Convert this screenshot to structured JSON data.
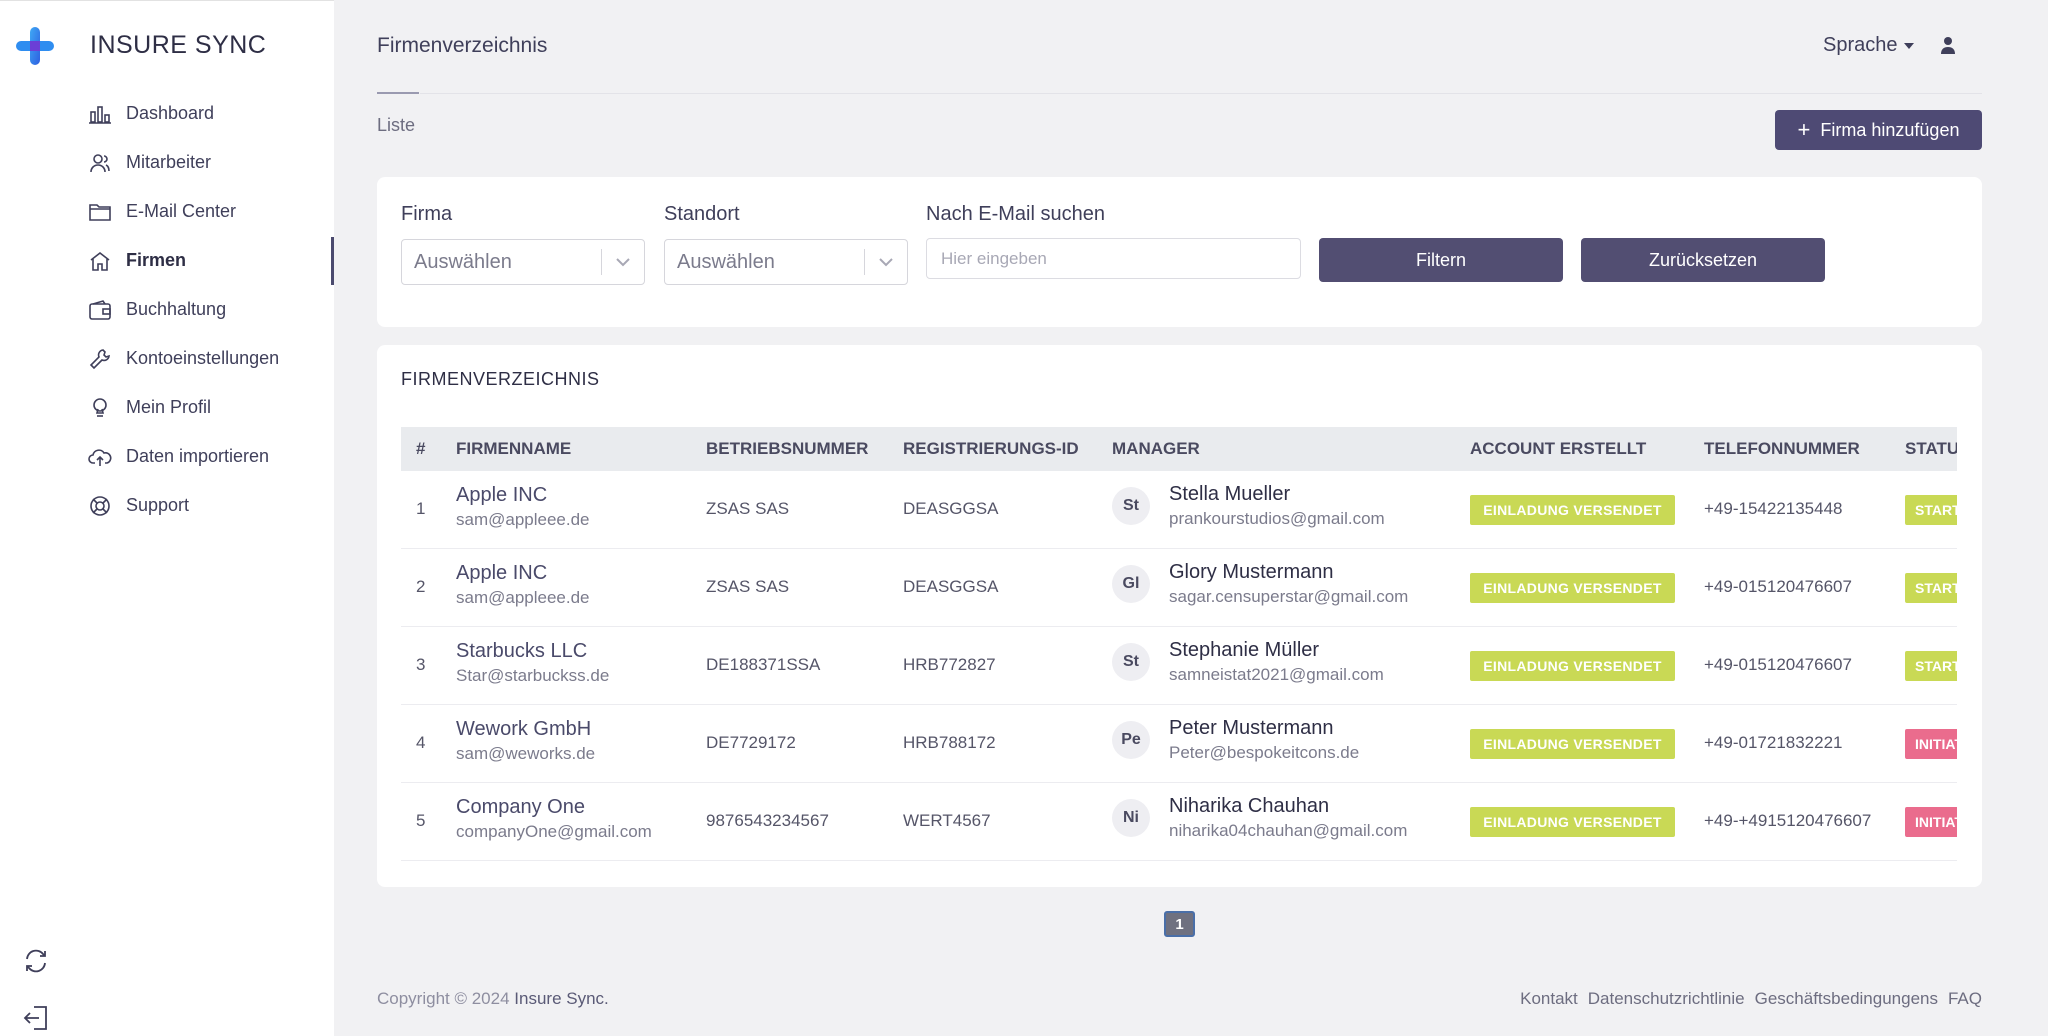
{
  "app": {
    "brand": "INSURE SYNC"
  },
  "sidebar": {
    "items": [
      {
        "label": "Dashboard",
        "icon": "bar-chart-icon"
      },
      {
        "label": "Mitarbeiter",
        "icon": "users-icon"
      },
      {
        "label": "E-Mail Center",
        "icon": "folder-icon"
      },
      {
        "label": "Firmen",
        "icon": "home-icon",
        "active": true
      },
      {
        "label": "Buchhaltung",
        "icon": "wallet-icon"
      },
      {
        "label": "Kontoeinstellungen",
        "icon": "wrench-icon"
      },
      {
        "label": "Mein Profil",
        "icon": "profile-icon"
      },
      {
        "label": "Daten importieren",
        "icon": "cloud-upload-icon"
      },
      {
        "label": "Support",
        "icon": "support-icon"
      }
    ]
  },
  "header": {
    "title": "Firmenverzeichnis",
    "language": "Sprache",
    "breadcrumb": "Liste",
    "add_button": "Firma hinzufügen"
  },
  "filters": {
    "firma_label": "Firma",
    "firma_value": "Auswählen",
    "standort_label": "Standort",
    "standort_value": "Auswählen",
    "email_label": "Nach E-Mail suchen",
    "email_placeholder": "Hier eingeben",
    "filter_button": "Filtern",
    "reset_button": "Zurücksetzen"
  },
  "table": {
    "title": "FIRMENVERZEICHNIS",
    "columns": [
      "#",
      "FIRMENNAME",
      "BETRIEBSNUMMER",
      "REGISTRIERUNGS-ID",
      "MANAGER",
      "ACCOUNT ERSTELLT",
      "TELEFONNUMMER",
      "STATUS"
    ],
    "rows": [
      {
        "num": "1",
        "firm": "Apple INC",
        "firm_email": "sam@appleee.de",
        "betrieb": "ZSAS SAS",
        "reg": "DEASGGSA",
        "initials": "St",
        "manager": "Stella Mueller",
        "manager_email": "prankourstudios@gmail.com",
        "account": "EINLADUNG VERSENDET",
        "phone": "+49-15422135448",
        "status": "STARTED",
        "status_color": "#c9d955"
      },
      {
        "num": "2",
        "firm": "Apple INC",
        "firm_email": "sam@appleee.de",
        "betrieb": "ZSAS SAS",
        "reg": "DEASGGSA",
        "initials": "Gl",
        "manager": "Glory Mustermann",
        "manager_email": "sagar.censuperstar@gmail.com",
        "account": "EINLADUNG VERSENDET",
        "phone": "+49-015120476607",
        "status": "STARTED",
        "status_color": "#c9d955"
      },
      {
        "num": "3",
        "firm": "Starbucks LLC",
        "firm_email": "Star@starbuckss.de",
        "betrieb": "DE188371SSA",
        "reg": "HRB772827",
        "initials": "St",
        "manager": "Stephanie Müller",
        "manager_email": "samneistat2021@gmail.com",
        "account": "EINLADUNG VERSENDET",
        "phone": "+49-015120476607",
        "status": "STARTED",
        "status_color": "#c9d955"
      },
      {
        "num": "4",
        "firm": "Wework GmbH",
        "firm_email": "sam@weworks.de",
        "betrieb": "DE7729172",
        "reg": "HRB788172",
        "initials": "Pe",
        "manager": "Peter Mustermann",
        "manager_email": "Peter@bespokeitcons.de",
        "account": "EINLADUNG VERSENDET",
        "phone": "+49-01721832221",
        "status": "INITIATED",
        "status_color": "#ea6c8d"
      },
      {
        "num": "5",
        "firm": "Company One",
        "firm_email": "companyOne@gmail.com",
        "betrieb": "9876543234567",
        "reg": "WERT4567",
        "initials": "Ni",
        "manager": "Niharika Chauhan",
        "manager_email": "niharika04chauhan@gmail.com",
        "account": "EINLADUNG VERSENDET",
        "phone": "+49-+4915120476607",
        "status": "INITIATED",
        "status_color": "#ea6c8d"
      }
    ]
  },
  "pagination": {
    "current": "1"
  },
  "footer": {
    "copyright": "Copyright © 2024",
    "brand": "Insure Sync.",
    "links": [
      "Kontakt",
      "Datenschutzrichtlinie",
      "Geschäftsbedingungens",
      "FAQ"
    ]
  }
}
